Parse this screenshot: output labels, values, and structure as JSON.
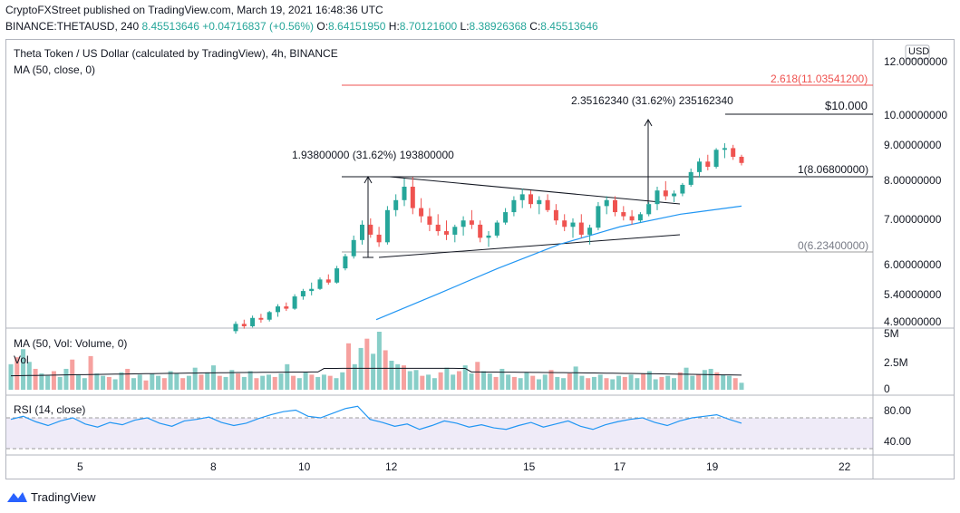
{
  "header": {
    "publisher_line": "CryptoFXStreet published on TradingView.com, March 19, 2021 16:48:36 UTC",
    "symbol": "BINANCE:THETAUSD, 240",
    "last": "8.45513646",
    "change": "+0.04716837 (+0.56%)",
    "o_label": "O:",
    "o": "8.64151950",
    "h_label": "H:",
    "h": "8.70121600",
    "l_label": "L:",
    "l": "8.38926368",
    "c_label": "C:",
    "c": "8.45513646"
  },
  "legend": {
    "title": "Theta Token / US Dollar (calculated by TradingView), 4h, BINANCE",
    "ma": "MA (50, close, 0)",
    "vol_ma": "MA (50, Vol: Volume, 0)",
    "vol": "Vol",
    "rsi": "RSI (14, close)"
  },
  "price_axis": {
    "currency": "USD",
    "ticks": [
      "12.00000000",
      "10.00000000",
      "9.00000000",
      "8.00000000",
      "7.00000000",
      "6.00000000",
      "5.40000000",
      "4.90000000"
    ]
  },
  "volume_axis": {
    "ticks": [
      "5M",
      "2.5M",
      "0"
    ]
  },
  "rsi_axis": {
    "ticks": [
      "80.00",
      "40.00"
    ]
  },
  "time_axis": {
    "ticks": [
      "5",
      "8",
      "10",
      "12",
      "15",
      "17",
      "19",
      "22"
    ]
  },
  "annotations": {
    "fib_2618": "2.618(11.03541200)",
    "fib_1": "1(8.06800000)",
    "fib_0": "0(6.23400000)",
    "target": "$10.000",
    "measure_left": "1.93800000 (31.62%) 193800000",
    "measure_right": "2.35162340 (31.62%) 235162340"
  },
  "colors": {
    "up": "#26a69a",
    "down": "#ef5350",
    "ma": "#2196f3",
    "fib": "#ef5350",
    "rsi": "#2196f3",
    "rsi_band": "#7e57c2"
  },
  "brand": {
    "name": "TradingView"
  },
  "chart_data": [
    {
      "type": "candlestick",
      "title": "Theta Token / US Dollar (calculated by TradingView), 4h, BINANCE",
      "x_dates": [
        "Mar 5",
        "Mar 8",
        "Mar 10",
        "Mar 12",
        "Mar 15",
        "Mar 17",
        "Mar 19",
        "Mar 22"
      ],
      "price_scale": "log",
      "series": [
        {
          "name": "THETAUSD 4h",
          "ohlc_sample": [
            [
              4.76,
              4.92,
              4.72,
              4.88
            ],
            [
              4.88,
              4.95,
              4.8,
              4.84
            ],
            [
              4.84,
              5.02,
              4.82,
              4.98
            ],
            [
              4.98,
              5.05,
              4.9,
              4.95
            ],
            [
              4.95,
              5.1,
              4.92,
              5.08
            ],
            [
              5.08,
              5.22,
              5.0,
              5.18
            ],
            [
              5.18,
              5.25,
              5.1,
              5.14
            ],
            [
              5.14,
              5.4,
              5.12,
              5.36
            ],
            [
              5.36,
              5.5,
              5.3,
              5.46
            ],
            [
              5.46,
              5.62,
              5.38,
              5.5
            ],
            [
              5.5,
              5.72,
              5.48,
              5.68
            ],
            [
              5.68,
              5.78,
              5.58,
              5.62
            ],
            [
              5.62,
              5.95,
              5.6,
              5.9
            ],
            [
              5.9,
              6.2,
              5.86,
              6.15
            ],
            [
              6.15,
              6.6,
              6.1,
              6.5
            ],
            [
              6.5,
              6.95,
              6.4,
              6.85
            ],
            [
              6.85,
              7.0,
              6.55,
              6.62
            ],
            [
              6.62,
              6.8,
              6.35,
              6.45
            ],
            [
              6.45,
              7.3,
              6.4,
              7.2
            ],
            [
              7.2,
              7.6,
              7.05,
              7.45
            ],
            [
              7.45,
              8.02,
              7.3,
              7.8
            ],
            [
              7.8,
              8.06,
              7.1,
              7.25
            ],
            [
              7.25,
              7.5,
              6.9,
              7.05
            ],
            [
              7.05,
              7.25,
              6.7,
              6.85
            ],
            [
              6.85,
              7.1,
              6.6,
              6.7
            ],
            [
              6.7,
              6.95,
              6.5,
              6.62
            ],
            [
              6.62,
              6.85,
              6.45,
              6.8
            ],
            [
              6.8,
              7.05,
              6.6,
              6.95
            ],
            [
              6.95,
              7.2,
              6.75,
              6.85
            ],
            [
              6.85,
              6.95,
              6.45,
              6.55
            ],
            [
              6.55,
              6.7,
              6.35,
              6.6
            ],
            [
              6.6,
              6.95,
              6.55,
              6.9
            ],
            [
              6.9,
              7.25,
              6.85,
              7.15
            ],
            [
              7.15,
              7.55,
              7.05,
              7.45
            ],
            [
              7.45,
              7.75,
              7.25,
              7.6
            ],
            [
              7.6,
              7.7,
              7.25,
              7.35
            ],
            [
              7.35,
              7.55,
              7.1,
              7.45
            ],
            [
              7.45,
              7.6,
              7.15,
              7.2
            ],
            [
              7.2,
              7.35,
              6.85,
              6.95
            ],
            [
              6.95,
              7.1,
              6.7,
              6.8
            ],
            [
              6.8,
              7.0,
              6.55,
              6.9
            ],
            [
              6.9,
              7.1,
              6.55,
              6.62
            ],
            [
              6.62,
              6.85,
              6.4,
              6.78
            ],
            [
              6.78,
              7.4,
              6.72,
              7.3
            ],
            [
              7.3,
              7.55,
              7.1,
              7.45
            ],
            [
              7.45,
              7.55,
              7.05,
              7.15
            ],
            [
              7.15,
              7.3,
              6.95,
              7.05
            ],
            [
              7.05,
              7.2,
              6.85,
              6.95
            ],
            [
              6.95,
              7.15,
              6.9,
              7.1
            ],
            [
              7.1,
              7.4,
              7.05,
              7.35
            ],
            [
              7.35,
              7.8,
              7.2,
              7.7
            ],
            [
              7.7,
              7.95,
              7.45,
              7.55
            ],
            [
              7.55,
              7.7,
              7.4,
              7.62
            ],
            [
              7.62,
              7.9,
              7.55,
              7.85
            ],
            [
              7.85,
              8.3,
              7.8,
              8.2
            ],
            [
              8.2,
              8.6,
              8.05,
              8.5
            ],
            [
              8.5,
              8.7,
              8.25,
              8.35
            ],
            [
              8.35,
              8.9,
              8.3,
              8.85
            ],
            [
              8.85,
              9.05,
              8.6,
              8.9
            ],
            [
              8.9,
              9.0,
              8.55,
              8.64
            ],
            [
              8.64,
              8.7,
              8.39,
              8.46
            ]
          ]
        },
        {
          "name": "MA (50, close, 0)",
          "values": [
            4.95,
            5.4,
            5.9,
            6.4,
            6.8,
            7.1,
            7.3
          ]
        }
      ],
      "horizontal_levels": [
        {
          "label": "2.618(11.03541200)",
          "value": 11.035412
        },
        {
          "label": "1(8.06800000)",
          "value": 8.068
        },
        {
          "label": "0(6.23400000)",
          "value": 6.234
        },
        {
          "label": "$10.000",
          "value": 10.0
        }
      ]
    },
    {
      "type": "bar",
      "title": "Vol",
      "ylim": [
        0,
        5000000
      ],
      "series": [
        {
          "name": "Vol",
          "values": [
            2.2,
            2.8,
            3.5,
            2.4,
            1.8,
            1.4,
            1.2,
            1.6,
            1.1,
            1.8,
            2.6,
            1.3,
            1.0,
            2.9,
            1.4,
            1.2,
            1.1,
            0.9,
            1.5,
            1.8,
            1.0,
            1.3,
            0.8,
            1.4,
            1.2,
            1.0,
            1.6,
            1.4,
            1.0,
            1.2,
            1.9,
            1.3,
            1.5,
            2.1,
            1.2,
            1.1,
            1.7,
            1.4,
            1.1,
            1.6,
            1.0,
            1.2,
            1.3,
            1.1,
            1.4,
            2.2,
            1.2,
            1.0,
            1.5,
            1.3,
            1.1,
            1.3,
            1.2,
            1.0,
            1.5,
            4.0,
            2.2,
            3.6,
            4.4,
            3.1,
            5.0,
            3.4,
            2.5,
            2.2,
            2.1,
            1.6,
            1.7,
            1.2,
            1.3,
            1.0,
            1.5,
            1.9,
            1.3,
            1.6,
            2.1,
            1.4,
            2.4,
            1.6,
            1.4,
            1.1,
            1.8,
            1.3,
            1.1,
            1.0,
            1.5,
            1.2,
            0.9,
            1.3,
            1.7,
            1.1,
            1.0,
            1.4,
            2.0,
            1.2,
            1.0,
            1.1,
            1.3,
            1.0,
            0.9,
            1.2,
            1.1,
            1.3,
            1.0,
            1.4,
            1.6,
            0.9,
            1.1,
            1.2,
            1.0,
            1.5,
            1.9,
            1.2,
            1.3,
            1.7,
            1.8,
            1.5,
            1.3,
            1.2,
            1.0,
            0.6
          ]
        }
      ]
    },
    {
      "type": "line",
      "title": "RSI (14, close)",
      "ylim": [
        30,
        90
      ],
      "series": [
        {
          "name": "RSI (14, close)",
          "values": [
            68,
            72,
            65,
            60,
            66,
            70,
            62,
            58,
            64,
            61,
            67,
            70,
            63,
            59,
            66,
            68,
            71,
            64,
            60,
            63,
            69,
            74,
            78,
            80,
            72,
            70,
            76,
            82,
            85,
            68,
            64,
            59,
            62,
            55,
            60,
            66,
            63,
            58,
            61,
            57,
            55,
            60,
            64,
            58,
            62,
            66,
            59,
            55,
            61,
            65,
            68,
            70,
            64,
            60,
            66,
            70,
            72,
            74,
            68,
            63
          ]
        }
      ]
    }
  ]
}
